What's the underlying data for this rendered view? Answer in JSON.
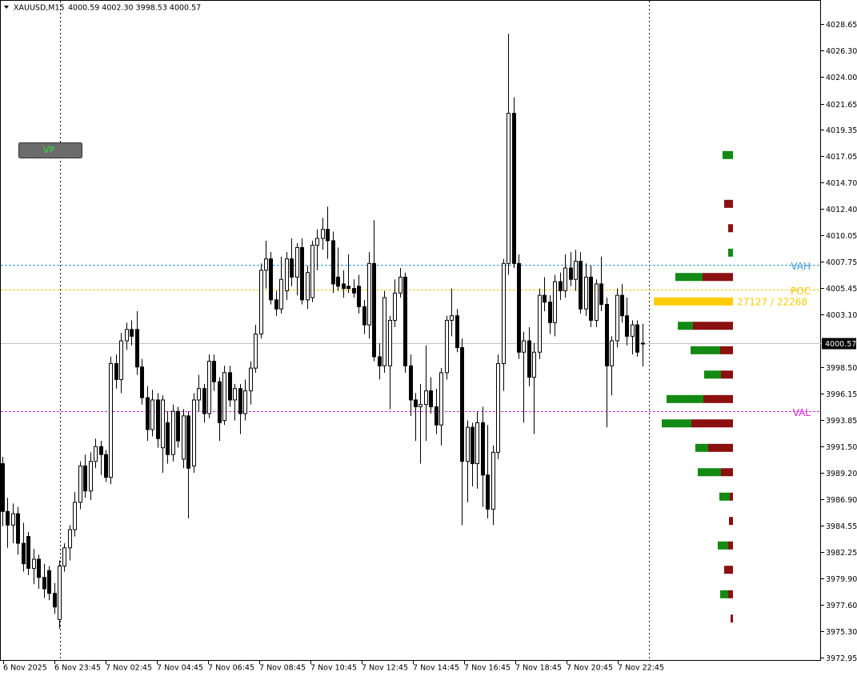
{
  "header": {
    "symbol": "XAUUSD,M15",
    "ohlc_text": "4000.59 4002.30 3998.53 4000.57"
  },
  "button": "VP",
  "chart_data": {
    "type": "candlestick",
    "ohlc": [
      [
        3990.0,
        3990.6,
        3984.5,
        3985.8
      ],
      [
        3985.8,
        3987.0,
        3982.6,
        3984.6
      ],
      [
        3984.6,
        3986.5,
        3983.0,
        3985.6
      ],
      [
        3985.6,
        3986.2,
        3982.0,
        3983.0
      ],
      [
        3983.0,
        3984.8,
        3980.5,
        3981.2
      ],
      [
        3983.6,
        3984.0,
        3980.2,
        3980.8
      ],
      [
        3980.8,
        3982.5,
        3979.4,
        3981.6
      ],
      [
        3981.6,
        3982.0,
        3979.0,
        3980.0
      ],
      [
        3980.0,
        3981.2,
        3978.2,
        3979.0
      ],
      [
        3980.6,
        3981.0,
        3978.0,
        3978.6
      ],
      [
        3978.6,
        3979.5,
        3976.8,
        3977.4
      ],
      [
        3976.3,
        3981.5,
        3975.5,
        3981.0
      ],
      [
        3981.0,
        3983.0,
        3980.5,
        3982.6
      ],
      [
        3982.6,
        3984.6,
        3981.5,
        3984.2
      ],
      [
        3984.2,
        3987.5,
        3983.6,
        3986.6
      ],
      [
        3986.6,
        3990.2,
        3986.0,
        3989.8
      ],
      [
        3989.8,
        3990.8,
        3987.0,
        3987.6
      ],
      [
        3987.6,
        3991.0,
        3986.8,
        3990.2
      ],
      [
        3990.2,
        3992.2,
        3989.6,
        3991.5
      ],
      [
        3991.5,
        3992.0,
        3989.0,
        3990.8
      ],
      [
        3990.8,
        3991.2,
        3988.4,
        3988.8
      ],
      [
        3988.8,
        3999.4,
        3988.2,
        3998.8
      ],
      [
        3998.8,
        3999.6,
        3996.6,
        3997.4
      ],
      [
        3997.4,
        4001.5,
        3996.2,
        4000.8
      ],
      [
        4000.8,
        4002.4,
        4000.0,
        4001.8
      ],
      [
        4001.8,
        4002.6,
        4000.4,
        4001.2
      ],
      [
        4001.8,
        4003.4,
        3997.8,
        3998.5
      ],
      [
        3998.5,
        3999.2,
        3995.2,
        3995.8
      ],
      [
        3995.8,
        3996.8,
        3992.0,
        3993.0
      ],
      [
        3993.0,
        3996.5,
        3992.4,
        3995.6
      ],
      [
        3995.6,
        3996.2,
        3991.4,
        3992.2
      ],
      [
        3991.4,
        3996.0,
        3989.2,
        3995.6
      ],
      [
        3993.6,
        3994.6,
        3990.0,
        3990.8
      ],
      [
        3990.8,
        3995.2,
        3990.2,
        3994.6
      ],
      [
        3994.6,
        3995.0,
        3991.4,
        3992.0
      ],
      [
        3990.4,
        3994.8,
        3989.6,
        3994.2
      ],
      [
        3994.2,
        3994.6,
        3985.2,
        3989.6
      ],
      [
        3989.8,
        3996.2,
        3989.2,
        3995.6
      ],
      [
        3995.6,
        3997.8,
        3994.6,
        3996.6
      ],
      [
        3996.6,
        3997.0,
        3993.6,
        3994.4
      ],
      [
        3994.4,
        3999.6,
        3994.0,
        3999.0
      ],
      [
        3999.0,
        3999.6,
        3996.4,
        3997.2
      ],
      [
        3997.2,
        3997.6,
        3992.0,
        3993.6
      ],
      [
        3993.8,
        3998.6,
        3993.4,
        3998.0
      ],
      [
        3998.0,
        3998.6,
        3995.0,
        3995.6
      ],
      [
        3995.6,
        3997.0,
        3993.8,
        3996.6
      ],
      [
        3996.6,
        3997.0,
        3992.6,
        3994.4
      ],
      [
        3994.4,
        3997.4,
        3993.8,
        3996.4
      ],
      [
        3996.4,
        3999.0,
        3995.2,
        3998.4
      ],
      [
        3998.4,
        4002.2,
        3998.0,
        4001.4
      ],
      [
        4001.4,
        4007.6,
        4001.0,
        4007.0
      ],
      [
        4007.0,
        4009.6,
        4005.4,
        4008.0
      ],
      [
        4008.0,
        4008.6,
        4004.0,
        4004.4
      ],
      [
        4004.4,
        4005.2,
        4003.0,
        4003.6
      ],
      [
        4003.6,
        4008.2,
        4003.2,
        4006.2
      ],
      [
        4005.2,
        4008.6,
        4004.4,
        4008.0
      ],
      [
        4008.0,
        4009.8,
        4005.6,
        4006.4
      ],
      [
        4006.4,
        4009.4,
        4004.8,
        4009.0
      ],
      [
        4009.0,
        4009.8,
        4004.0,
        4004.4
      ],
      [
        4004.4,
        4007.4,
        4003.6,
        4006.8
      ],
      [
        4004.6,
        4009.6,
        4004.2,
        4009.2
      ],
      [
        4009.2,
        4010.6,
        4007.0,
        4009.8
      ],
      [
        4009.8,
        4011.6,
        4008.8,
        4010.6
      ],
      [
        4010.6,
        4012.6,
        4008.0,
        4009.6
      ],
      [
        4009.6,
        4010.4,
        4005.0,
        4005.8
      ],
      [
        4006.4,
        4009.0,
        4005.2,
        4005.6
      ],
      [
        4005.8,
        4007.0,
        4004.6,
        4005.4
      ],
      [
        4005.6,
        4008.4,
        4005.0,
        4005.4
      ],
      [
        4005.4,
        4006.2,
        4004.6,
        4005.0
      ],
      [
        4005.6,
        4006.6,
        4003.2,
        4003.8
      ],
      [
        4003.8,
        4004.4,
        4001.4,
        4002.2
      ],
      [
        4002.2,
        4008.6,
        4001.0,
        4007.6
      ],
      [
        4007.6,
        4011.4,
        3999.0,
        3999.4
      ],
      [
        3999.4,
        4000.6,
        3997.4,
        3998.6
      ],
      [
        3998.6,
        4005.2,
        3998.0,
        4004.6
      ],
      [
        3998.6,
        4003.0,
        3994.8,
        4002.6
      ],
      [
        4002.6,
        4006.2,
        4002.0,
        4005.0
      ],
      [
        4005.0,
        4007.2,
        4004.6,
        4006.4
      ],
      [
        4006.4,
        4006.8,
        3998.0,
        3998.6
      ],
      [
        3998.6,
        3999.6,
        3994.2,
        3995.6
      ],
      [
        3995.6,
        3996.2,
        3992.0,
        3995.0
      ],
      [
        3995.0,
        3997.0,
        3990.0,
        3995.2
      ],
      [
        3995.2,
        4000.4,
        3992.0,
        3996.4
      ],
      [
        3996.4,
        3997.6,
        3994.4,
        3995.0
      ],
      [
        3995.0,
        3996.6,
        3992.6,
        3993.4
      ],
      [
        3993.4,
        3998.4,
        3991.6,
        3998.0
      ],
      [
        3998.0,
        4003.0,
        3997.4,
        4002.6
      ],
      [
        4002.6,
        4005.4,
        4001.2,
        4003.0
      ],
      [
        4003.0,
        4003.6,
        3999.8,
        4000.2
      ],
      [
        4000.2,
        4001.0,
        3984.6,
        3990.2
      ],
      [
        3990.2,
        3993.8,
        3986.6,
        3993.2
      ],
      [
        3993.2,
        3993.6,
        3988.0,
        3990.0
      ],
      [
        3990.0,
        3994.6,
        3987.8,
        3993.6
      ],
      [
        3993.6,
        3995.0,
        3986.2,
        3989.0
      ],
      [
        3989.0,
        3993.4,
        3985.2,
        3986.0
      ],
      [
        3986.0,
        3991.6,
        3984.6,
        3991.0
      ],
      [
        3991.0,
        3999.6,
        3990.4,
        3998.8
      ],
      [
        3998.8,
        4008.0,
        3996.4,
        4007.6
      ],
      [
        4007.6,
        4027.8,
        4006.6,
        4020.8
      ],
      [
        4020.8,
        4022.2,
        4007.2,
        4007.6
      ],
      [
        4007.6,
        4008.4,
        3999.2,
        3999.8
      ],
      [
        3999.8,
        4001.6,
        3993.6,
        4000.8
      ],
      [
        4000.8,
        4002.0,
        3996.8,
        3997.6
      ],
      [
        3997.6,
        4000.6,
        3992.6,
        3999.8
      ],
      [
        3999.8,
        4005.4,
        3999.2,
        4004.8
      ],
      [
        4004.8,
        4006.4,
        4003.4,
        4004.2
      ],
      [
        4004.2,
        4004.8,
        4001.4,
        4002.4
      ],
      [
        4002.4,
        4006.6,
        4001.2,
        4006.0
      ],
      [
        4006.0,
        4006.8,
        4004.4,
        4005.2
      ],
      [
        4005.2,
        4008.4,
        4004.6,
        4007.2
      ],
      [
        4007.2,
        4008.6,
        4005.6,
        4006.2
      ],
      [
        4006.2,
        4008.8,
        4005.2,
        4007.8
      ],
      [
        4007.8,
        4008.6,
        4003.2,
        4003.6
      ],
      [
        4003.6,
        4007.6,
        4003.0,
        4006.4
      ],
      [
        4006.4,
        4007.4,
        4002.0,
        4002.6
      ],
      [
        4002.6,
        4006.2,
        4002.0,
        4005.8
      ],
      [
        4005.8,
        4008.2,
        4003.4,
        4004.0
      ],
      [
        4004.0,
        4004.6,
        3993.2,
        3998.6
      ],
      [
        3998.6,
        4001.2,
        3996.0,
        4000.8
      ],
      [
        4000.8,
        4005.4,
        4000.2,
        4004.8
      ],
      [
        4004.8,
        4005.8,
        4002.4,
        4003.0
      ],
      [
        4003.0,
        4004.6,
        4000.4,
        4001.2
      ],
      [
        4001.2,
        4002.6,
        3999.6,
        4002.2
      ],
      [
        4002.2,
        4002.6,
        3999.4,
        3999.8
      ],
      [
        4000.59,
        4002.3,
        3998.53,
        4000.57
      ]
    ],
    "x_labels": [
      "6 Nov 2025",
      "6 Nov 23:45",
      "7 Nov 02:45",
      "7 Nov 04:45",
      "7 Nov 06:45",
      "7 Nov 08:45",
      "7 Nov 10:45",
      "7 Nov 12:45",
      "7 Nov 14:45",
      "7 Nov 16:45",
      "7 Nov 18:45",
      "7 Nov 20:45",
      "7 Nov 22:45"
    ],
    "ylim": [
      3972.67,
      4030.76
    ],
    "yticks": [
      4028.65,
      {
        "value": 4026.3,
        "label": "4026.30"
      },
      {
        "value": 4024.0,
        "label": "4024.00"
      },
      4021.65,
      4019.35,
      4017.05,
      {
        "value": 4014.7,
        "label": "4014.70"
      },
      {
        "value": 4012.4,
        "label": "4012.40"
      },
      4010.05,
      4007.75,
      4005.45,
      {
        "value": 4003.1,
        "label": "4003.10"
      },
      {
        "value": 3998.5,
        "label": "3998.50"
      },
      3996.15,
      3993.85,
      {
        "value": 3991.5,
        "label": "3991.50"
      },
      {
        "value": 3989.2,
        "label": "3989.20"
      },
      {
        "value": 3986.9,
        "label": "3986.90"
      },
      3984.55,
      3982.25,
      {
        "value": 3979.9,
        "label": "3979.90"
      },
      {
        "value": 3977.6,
        "label": "3977.60"
      },
      {
        "value": 3975.3,
        "label": "3975.30"
      },
      3972.95
    ],
    "current_price": 4000.57,
    "bull_color": "#ffffff",
    "bear_color": "#000000",
    "levels": [
      {
        "name": "VAH",
        "value": 4007.48,
        "color": "#3a9ad9"
      },
      {
        "name": "POC",
        "value": 4005.31,
        "color": "#f5c400"
      },
      {
        "name": "VAL",
        "value": 3994.62,
        "color": "#e020e0"
      }
    ],
    "volume_profile": {
      "rows": [
        4017.13,
        4014.98,
        4012.84,
        4010.7,
        4008.55,
        4006.41,
        4004.26,
        4002.12,
        3999.97,
        3997.83,
        3995.68,
        3993.54,
        3991.39,
        3989.25,
        3987.1,
        3984.96,
        3982.81,
        3980.67,
        3978.52,
        3976.38
      ],
      "buy": [
        6500,
        0,
        0,
        0,
        3000,
        17000,
        27127,
        9500,
        18500,
        10500,
        23000,
        18500,
        8000,
        14500,
        6500,
        0,
        6500,
        0,
        5000,
        0
      ],
      "sell": [
        0,
        0,
        5500,
        3000,
        0,
        19000,
        22268,
        25000,
        8000,
        7500,
        18500,
        26000,
        15500,
        7500,
        2000,
        2500,
        3000,
        5500,
        3000,
        1500
      ],
      "buy_color": "#138a13",
      "sell_color": "#8b1010",
      "poc_color": "#ffcc00",
      "poc_label": "27127 / 22268"
    }
  }
}
